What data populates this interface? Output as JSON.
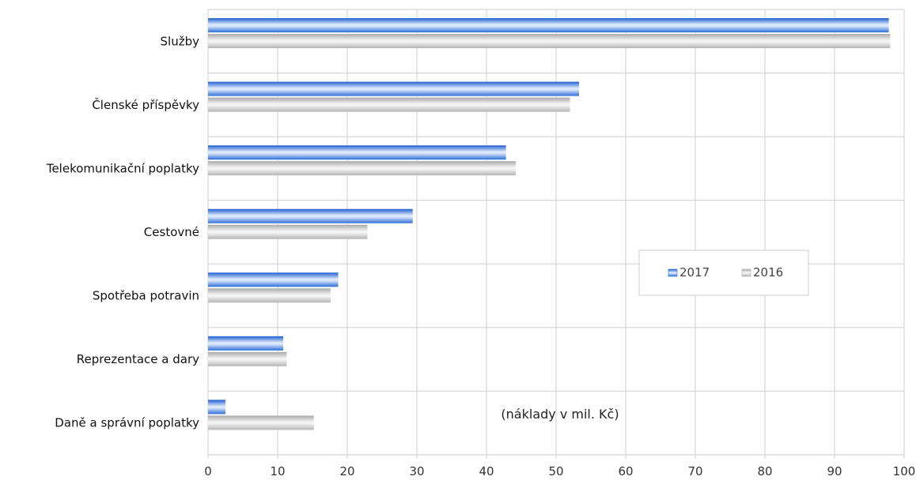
{
  "chart_data": {
    "type": "bar",
    "orientation": "horizontal",
    "categories": [
      "Služby",
      "Členské příspěvky",
      "Telekomunikační poplatky",
      "Cestovné",
      "Spotřeba potravin",
      "Reprezentace a dary",
      "Daně a správní poplatky"
    ],
    "series": [
      {
        "name": "2017",
        "values": [
          97.8,
          53.3,
          42.8,
          29.4,
          18.7,
          10.8,
          2.5
        ]
      },
      {
        "name": "2016",
        "values": [
          98.0,
          52.0,
          44.2,
          22.9,
          17.6,
          11.3,
          15.2
        ]
      }
    ],
    "xlim": [
      0,
      100
    ],
    "x_ticks": [
      "0",
      "10",
      "20",
      "30",
      "40",
      "50",
      "60",
      "70",
      "80",
      "90",
      "100"
    ],
    "annotation": "(náklady v mil. Kč)",
    "grid": true,
    "legend_position": "right",
    "colors": {
      "2017": "#2f6fd8",
      "2016": "#bdbdbd",
      "grid": "#cfcfcf"
    }
  }
}
